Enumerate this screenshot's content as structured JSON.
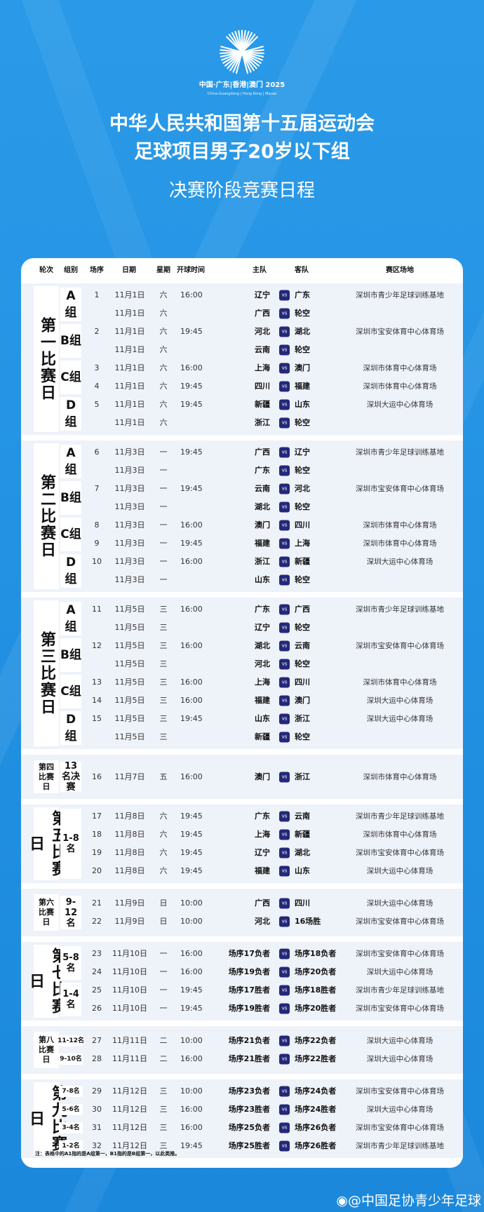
{
  "header": {
    "logo_text": "中国·广东|香港|澳门 2025",
    "logo_sub": "China-Guangdong | Hong Kong | Macao",
    "title_line1": "中华人民共和国第十五届运动会",
    "title_line2": "足球项目男子20岁以下组",
    "subtitle": "决赛阶段竞赛日程"
  },
  "colors": {
    "background": "#1f8fe2",
    "section_bg": "#eef2f9",
    "vs_badge": "#23287a"
  },
  "table": {
    "columns": [
      "轮次",
      "组别",
      "场序",
      "日期",
      "星期",
      "开球时间",
      "主队",
      "客队",
      "赛区场地"
    ],
    "vs_label": "VS",
    "sections": [
      {
        "round": "第一比赛日",
        "groups": [
          {
            "label": "A组",
            "rows": [
              [
                "1",
                "11月1日",
                "六",
                "16:00",
                "辽宁",
                "广东",
                "深圳市青少年足球训练基地"
              ],
              [
                "",
                "11月1日",
                "六",
                "",
                "广西",
                "轮空",
                ""
              ]
            ]
          },
          {
            "label": "B组",
            "rows": [
              [
                "2",
                "11月1日",
                "六",
                "19:45",
                "河北",
                "湖北",
                "深圳市宝安体育中心体育场"
              ],
              [
                "",
                "11月1日",
                "六",
                "",
                "云南",
                "轮空",
                ""
              ]
            ]
          },
          {
            "label": "C组",
            "rows": [
              [
                "3",
                "11月1日",
                "六",
                "16:00",
                "上海",
                "澳门",
                "深圳市体育中心体育场"
              ],
              [
                "4",
                "11月1日",
                "六",
                "19:45",
                "四川",
                "福建",
                "深圳市体育中心体育场"
              ]
            ]
          },
          {
            "label": "D组",
            "rows": [
              [
                "5",
                "11月1日",
                "六",
                "19:45",
                "新疆",
                "山东",
                "深圳大运中心体育场"
              ],
              [
                "",
                "11月1日",
                "六",
                "",
                "浙江",
                "轮空",
                ""
              ]
            ]
          }
        ]
      },
      {
        "round": "第二比赛日",
        "groups": [
          {
            "label": "A组",
            "rows": [
              [
                "6",
                "11月3日",
                "一",
                "19:45",
                "广西",
                "辽宁",
                "深圳市青少年足球训练基地"
              ],
              [
                "",
                "11月3日",
                "一",
                "",
                "广东",
                "轮空",
                ""
              ]
            ]
          },
          {
            "label": "B组",
            "rows": [
              [
                "7",
                "11月3日",
                "一",
                "19:45",
                "云南",
                "河北",
                "深圳市宝安体育中心体育场"
              ],
              [
                "",
                "11月3日",
                "一",
                "",
                "湖北",
                "轮空",
                ""
              ]
            ]
          },
          {
            "label": "C组",
            "rows": [
              [
                "8",
                "11月3日",
                "一",
                "16:00",
                "澳门",
                "四川",
                "深圳市体育中心体育场"
              ],
              [
                "9",
                "11月3日",
                "一",
                "19:45",
                "福建",
                "上海",
                "深圳市体育中心体育场"
              ]
            ]
          },
          {
            "label": "D组",
            "rows": [
              [
                "10",
                "11月3日",
                "一",
                "16:00",
                "浙江",
                "新疆",
                "深圳大运中心体育场"
              ],
              [
                "",
                "11月3日",
                "一",
                "",
                "山东",
                "轮空",
                ""
              ]
            ]
          }
        ]
      },
      {
        "round": "第三比赛日",
        "groups": [
          {
            "label": "A组",
            "rows": [
              [
                "11",
                "11月5日",
                "三",
                "16:00",
                "广东",
                "广西",
                "深圳市青少年足球训练基地"
              ],
              [
                "",
                "11月5日",
                "三",
                "",
                "辽宁",
                "轮空",
                ""
              ]
            ]
          },
          {
            "label": "B组",
            "rows": [
              [
                "12",
                "11月5日",
                "三",
                "16:00",
                "湖北",
                "云南",
                "深圳市宝安体育中心体育场"
              ],
              [
                "",
                "11月5日",
                "三",
                "",
                "河北",
                "轮空",
                ""
              ]
            ]
          },
          {
            "label": "C组",
            "rows": [
              [
                "13",
                "11月5日",
                "三",
                "16:00",
                "上海",
                "四川",
                "深圳市体育中心体育场"
              ],
              [
                "14",
                "11月5日",
                "三",
                "16:00",
                "福建",
                "澳门",
                "深圳大运中心体育场"
              ]
            ]
          },
          {
            "label": "D组",
            "rows": [
              [
                "15",
                "11月5日",
                "三",
                "19:45",
                "山东",
                "浙江",
                "深圳大运中心体育场"
              ],
              [
                "",
                "11月5日",
                "三",
                "",
                "新疆",
                "轮空",
                ""
              ]
            ]
          }
        ]
      },
      {
        "round": "第四比赛日",
        "groups": [
          {
            "label": "13名决赛",
            "rows": [
              [
                "16",
                "11月7日",
                "五",
                "16:00",
                "澳门",
                "浙江",
                "深圳市体育中心体育场"
              ]
            ]
          }
        ]
      },
      {
        "round": "第五比赛日",
        "groups": [
          {
            "label": "1-8名",
            "rows": [
              [
                "17",
                "11月8日",
                "六",
                "19:45",
                "广东",
                "云南",
                "深圳市青少年足球训练基地"
              ],
              [
                "18",
                "11月8日",
                "六",
                "19:45",
                "上海",
                "新疆",
                "深圳市体育中心体育场"
              ],
              [
                "19",
                "11月8日",
                "六",
                "19:45",
                "辽宁",
                "湖北",
                "深圳市宝安体育中心体育场"
              ],
              [
                "20",
                "11月8日",
                "六",
                "19:45",
                "福建",
                "山东",
                "深圳大运中心体育场"
              ]
            ]
          }
        ]
      },
      {
        "round": "第六比赛日",
        "groups": [
          {
            "label": "9-12名",
            "rows": [
              [
                "21",
                "11月9日",
                "日",
                "10:00",
                "广西",
                "四川",
                "深圳大运中心体育场"
              ],
              [
                "22",
                "11月9日",
                "日",
                "10:00",
                "河北",
                "16场胜",
                "深圳市宝安体育中心体育场"
              ]
            ]
          }
        ]
      },
      {
        "round": "第七比赛日",
        "groups": [
          {
            "label": "5-8名",
            "rows": [
              [
                "23",
                "11月10日",
                "一",
                "16:00",
                "场序17负者",
                "场序18负者",
                "深圳市宝安体育中心体育场"
              ],
              [
                "24",
                "11月10日",
                "一",
                "16:00",
                "场序19负者",
                "场序20负者",
                "深圳大运中心体育场"
              ]
            ]
          },
          {
            "label": "1-4名",
            "rows": [
              [
                "25",
                "11月10日",
                "一",
                "19:45",
                "场序17胜者",
                "场序18胜者",
                "深圳市青少年足球训练基地"
              ],
              [
                "26",
                "11月10日",
                "一",
                "19:45",
                "场序19胜者",
                "场序20胜者",
                "深圳市宝安体育中心体育场"
              ]
            ]
          }
        ]
      },
      {
        "round": "第八比赛日",
        "groups": [
          {
            "label": "11-12名",
            "rows": [
              [
                "27",
                "11月11日",
                "二",
                "10:00",
                "场序21负者",
                "场序22负者",
                "深圳大运中心体育场"
              ]
            ]
          },
          {
            "label": "9-10名",
            "rows": [
              [
                "28",
                "11月11日",
                "二",
                "16:00",
                "场序21胜者",
                "场序22胜者",
                "深圳大运中心体育场"
              ]
            ]
          }
        ]
      },
      {
        "round": "第九比赛日",
        "groups": [
          {
            "label": "7-8名",
            "rows": [
              [
                "29",
                "11月12日",
                "三",
                "10:00",
                "场序23负者",
                "场序24负者",
                "深圳市宝安体育中心体育场"
              ]
            ]
          },
          {
            "label": "5-6名",
            "rows": [
              [
                "30",
                "11月12日",
                "三",
                "16:00",
                "场序23胜者",
                "场序24胜者",
                "深圳大运中心体育场"
              ]
            ]
          },
          {
            "label": "3-4名",
            "rows": [
              [
                "31",
                "11月12日",
                "三",
                "16:00",
                "场序25负者",
                "场序26负者",
                "深圳市宝安体育中心体育场"
              ]
            ]
          },
          {
            "label": "1-2名",
            "rows": [
              [
                "32",
                "11月12日",
                "三",
                "19:45",
                "场序25胜者",
                "场序26胜者",
                "深圳市青少年足球训练基地"
              ]
            ]
          }
        ]
      }
    ],
    "note": "注：表格中的A1指的是A组第一，B1指的是B组第一，以此类推。"
  },
  "footer": {
    "weibo": "@中国足协青少年足球"
  }
}
